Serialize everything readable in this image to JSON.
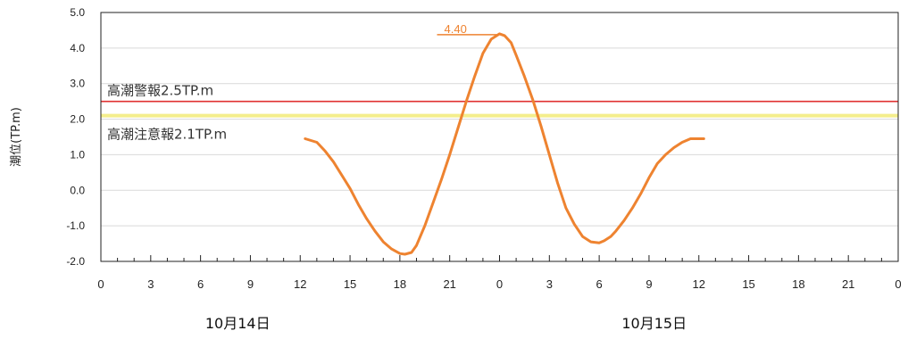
{
  "chart_data": {
    "type": "line",
    "ylabel": "潮位(TP.m)",
    "ylim": [
      -2.0,
      5.0
    ],
    "y_ticks": [
      "5.0",
      "4.0",
      "3.0",
      "2.0",
      "1.0",
      "0.0",
      "-1.0",
      "-2.0"
    ],
    "xlim_hours": [
      0,
      48
    ],
    "x_tick_labels": [
      "0",
      "3",
      "6",
      "9",
      "12",
      "15",
      "18",
      "21",
      "0",
      "3",
      "6",
      "9",
      "12",
      "15",
      "18",
      "21",
      "0"
    ],
    "date_labels": [
      "10月14日",
      "10月15日"
    ],
    "grid": "horizontal",
    "thresholds": [
      {
        "label": "高潮警報2.5TP.m",
        "value": 2.5,
        "color": "#e03030"
      },
      {
        "label": "高潮注意報2.1TP.m",
        "value": 2.1,
        "color": "#f4ee8c"
      }
    ],
    "series": [
      {
        "color": "#ee8330",
        "x": [
          12.3,
          13,
          13.5,
          14,
          15,
          15.5,
          16,
          16.5,
          17,
          17.5,
          18,
          18.3,
          18.7,
          19,
          19.5,
          20,
          20.5,
          21,
          21.5,
          22,
          22.5,
          23,
          23.5,
          24,
          24.3,
          24.7,
          25,
          25.5,
          26,
          26.5,
          27,
          27.5,
          28,
          28.5,
          29,
          29.5,
          30,
          30.3,
          30.7,
          31,
          31.5,
          32,
          32.5,
          33,
          33.5,
          34,
          34.5,
          35,
          35.5,
          36,
          36.3
        ],
        "y": [
          1.45,
          1.35,
          1.1,
          0.8,
          0.05,
          -0.4,
          -0.8,
          -1.15,
          -1.45,
          -1.65,
          -1.78,
          -1.8,
          -1.75,
          -1.55,
          -1.0,
          -0.35,
          0.3,
          1.0,
          1.75,
          2.5,
          3.2,
          3.85,
          4.25,
          4.4,
          4.35,
          4.15,
          3.8,
          3.2,
          2.55,
          1.8,
          1.0,
          0.2,
          -0.5,
          -0.95,
          -1.3,
          -1.45,
          -1.48,
          -1.42,
          -1.3,
          -1.15,
          -0.85,
          -0.5,
          -0.1,
          0.35,
          0.75,
          1.0,
          1.2,
          1.35,
          1.45,
          1.45,
          1.45
        ]
      }
    ],
    "annotations": [
      {
        "text": "4.40",
        "x": 24,
        "y": 4.4
      }
    ]
  }
}
